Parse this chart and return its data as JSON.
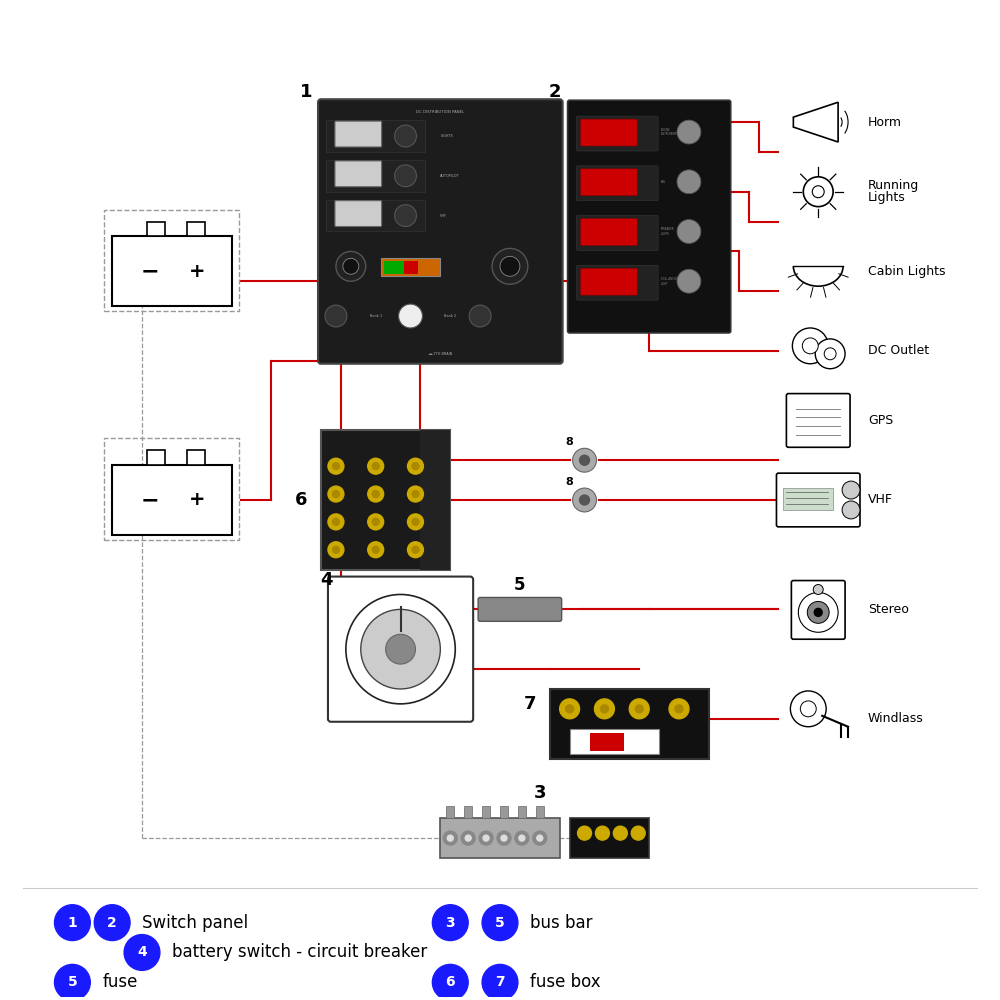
{
  "bg_color": "#ffffff",
  "circle_color": "#1a1aff",
  "circle_text_color": "#ffffff",
  "label_color": "#000000",
  "red_line_color": "#cc0000",
  "gray_line_color": "#999999",
  "panel1_color": "#1a1a1a",
  "panel2_color": "#111111",
  "fuse_box_color": "#1a1a1a",
  "gold_color": "#ccaa00",
  "switch_gray": "#888888",
  "switch_red": "#cc0000",
  "battery_outline": "#000000",
  "devices": {
    "horn_label": "Horm",
    "running_label": "Running\nLights",
    "cabin_label": "Cabin Lights",
    "dc_label": "DC Outlet",
    "gps_label": "GPS",
    "vhf_label": "VHF",
    "stereo_label": "Stereo",
    "windlass_label": "Windlass"
  },
  "legend": [
    {
      "circles": [
        "1",
        "2"
      ],
      "text": "Switch panel",
      "circles2": [
        "3",
        "5"
      ],
      "text2": "bus bar"
    },
    {
      "circles": [
        "4"
      ],
      "text": "battery switch - circuit breaker"
    },
    {
      "circles": [
        "5"
      ],
      "text": "fuse",
      "circles2": [
        "6",
        "7"
      ],
      "text2": "fuse box"
    }
  ]
}
